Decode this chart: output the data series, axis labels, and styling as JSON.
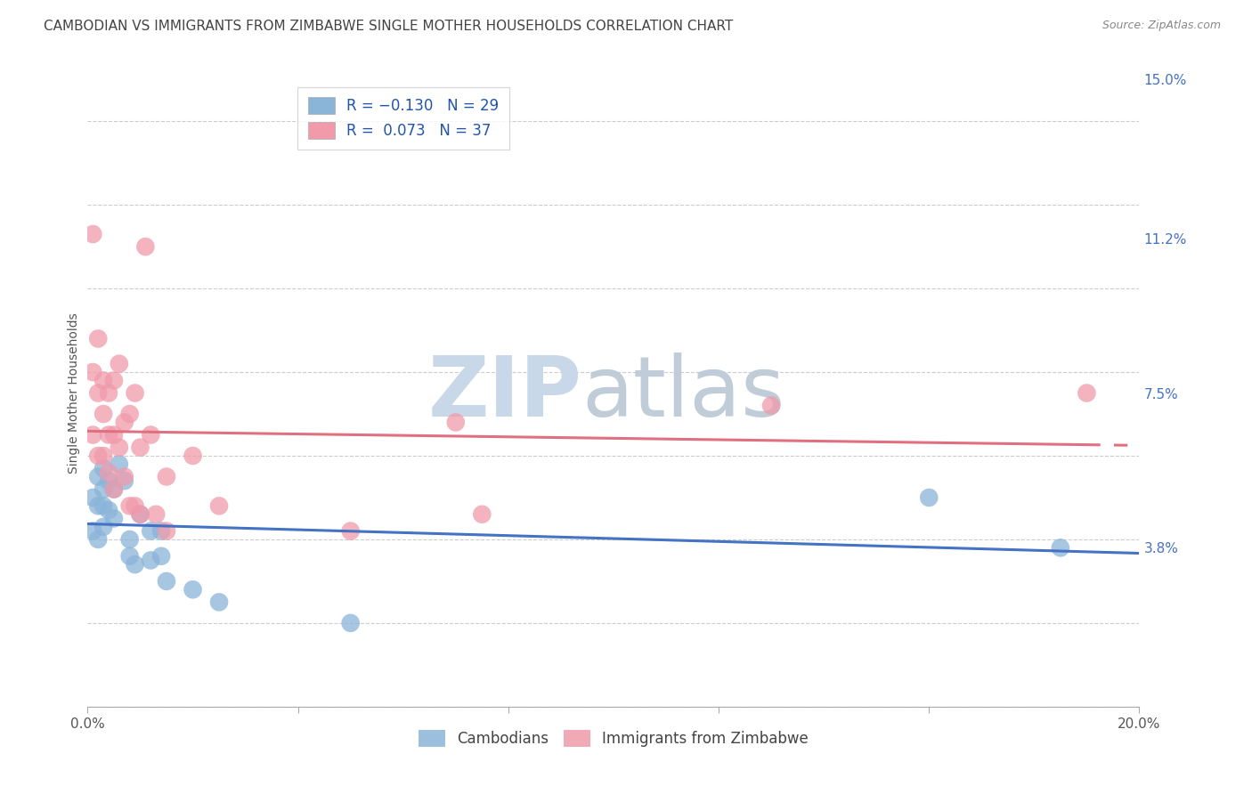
{
  "title": "CAMBODIAN VS IMMIGRANTS FROM ZIMBABWE SINGLE MOTHER HOUSEHOLDS CORRELATION CHART",
  "source": "Source: ZipAtlas.com",
  "ylabel": "Single Mother Households",
  "xlim": [
    0.0,
    0.2
  ],
  "ylim": [
    0.0,
    0.15
  ],
  "xtick_vals": [
    0.0,
    0.04,
    0.08,
    0.12,
    0.16,
    0.2
  ],
  "xtick_labels": [
    "0.0%",
    "",
    "",
    "",
    "",
    "20.0%"
  ],
  "ytick_vals_right": [
    0.15,
    0.112,
    0.075,
    0.038
  ],
  "ytick_labels_right": [
    "15.0%",
    "11.2%",
    "7.5%",
    "3.8%"
  ],
  "watermark_zip": "ZIP",
  "watermark_atlas": "atlas",
  "cambodian_color": "#8ab4d8",
  "zimbabwe_color": "#f09aaa",
  "cambodian_line_color": "#4472c4",
  "zimbabwe_line_color": "#e07080",
  "cambodian_x": [
    0.001,
    0.001,
    0.002,
    0.002,
    0.002,
    0.003,
    0.003,
    0.003,
    0.003,
    0.004,
    0.004,
    0.005,
    0.005,
    0.006,
    0.007,
    0.008,
    0.008,
    0.009,
    0.01,
    0.012,
    0.012,
    0.014,
    0.014,
    0.015,
    0.02,
    0.025,
    0.05,
    0.16,
    0.185
  ],
  "cambodian_y": [
    0.05,
    0.042,
    0.055,
    0.048,
    0.04,
    0.057,
    0.052,
    0.048,
    0.043,
    0.054,
    0.047,
    0.052,
    0.045,
    0.058,
    0.054,
    0.04,
    0.036,
    0.034,
    0.046,
    0.042,
    0.035,
    0.042,
    0.036,
    0.03,
    0.028,
    0.025,
    0.02,
    0.05,
    0.038
  ],
  "zimbabwe_x": [
    0.001,
    0.001,
    0.001,
    0.002,
    0.002,
    0.002,
    0.003,
    0.003,
    0.003,
    0.004,
    0.004,
    0.004,
    0.005,
    0.005,
    0.005,
    0.006,
    0.006,
    0.007,
    0.007,
    0.008,
    0.008,
    0.009,
    0.009,
    0.01,
    0.01,
    0.011,
    0.012,
    0.013,
    0.015,
    0.015,
    0.02,
    0.025,
    0.05,
    0.07,
    0.075,
    0.13,
    0.19
  ],
  "zimbabwe_y": [
    0.113,
    0.08,
    0.065,
    0.088,
    0.075,
    0.06,
    0.078,
    0.07,
    0.06,
    0.075,
    0.065,
    0.056,
    0.078,
    0.065,
    0.052,
    0.082,
    0.062,
    0.068,
    0.055,
    0.07,
    0.048,
    0.075,
    0.048,
    0.062,
    0.046,
    0.11,
    0.065,
    0.046,
    0.055,
    0.042,
    0.06,
    0.048,
    0.042,
    0.068,
    0.046,
    0.072,
    0.075
  ],
  "grid_color": "#cccccc",
  "background_color": "#ffffff",
  "title_fontsize": 11,
  "axis_label_fontsize": 10,
  "tick_fontsize": 11,
  "watermark_zip_color": "#c8d8e8",
  "watermark_atlas_color": "#c0ccd8",
  "watermark_fontsize": 68
}
